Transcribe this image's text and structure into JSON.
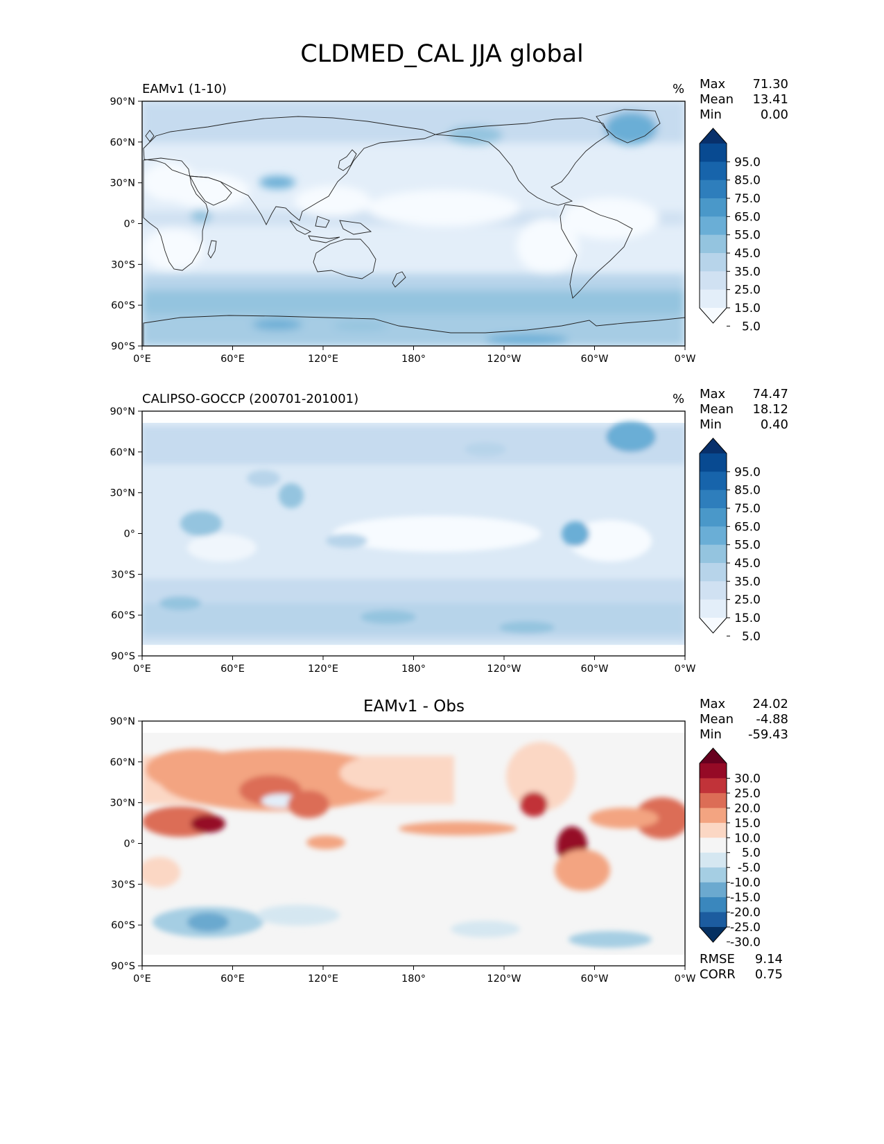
{
  "title": "CLDMED_CAL JJA global",
  "x_ticks": [
    "0°E",
    "60°E",
    "120°E",
    "180°",
    "120°W",
    "60°W",
    "0°W"
  ],
  "y_ticks": [
    "90°N",
    "60°N",
    "30°N",
    "0°",
    "30°S",
    "60°S",
    "90°S"
  ],
  "panels": [
    {
      "label": "EAMv1 (1-10)",
      "units": "%",
      "stats": [
        {
          "key": "Max",
          "value": "71.30"
        },
        {
          "key": "Mean",
          "value": "13.41"
        },
        {
          "key": "Min",
          "value": "0.00"
        }
      ]
    },
    {
      "label": "CALIPSO-GOCCP (200701-201001)",
      "units": "%",
      "stats": [
        {
          "key": "Max",
          "value": "74.47"
        },
        {
          "key": "Mean",
          "value": "18.12"
        },
        {
          "key": "Min",
          "value": "0.40"
        }
      ]
    },
    {
      "title": "EAMv1 - Obs",
      "stats": [
        {
          "key": "Max",
          "value": "24.02"
        },
        {
          "key": "Mean",
          "value": "-4.88"
        },
        {
          "key": "Min",
          "value": "-59.43"
        }
      ],
      "metrics": [
        {
          "key": "RMSE",
          "value": "9.14"
        },
        {
          "key": "CORR",
          "value": "0.75"
        }
      ]
    }
  ],
  "colorbar_seq": {
    "tick_labels": [
      "95.0",
      "85.0",
      "75.0",
      "65.0",
      "55.0",
      "45.0",
      "35.0",
      "25.0",
      "15.0",
      "5.0"
    ],
    "colors": [
      "#f7fbff",
      "#e3eef9",
      "#d0e1f2",
      "#b7d4ea",
      "#94c4df",
      "#6aaed6",
      "#4a98c9",
      "#2e7ebc",
      "#1764ab",
      "#084a91",
      "#08306b"
    ]
  },
  "colorbar_diff": {
    "tick_labels": [
      "30.0",
      "25.0",
      "20.0",
      "15.0",
      "10.0",
      "5.0",
      "-5.0",
      "-10.0",
      "-15.0",
      "-20.0",
      "-25.0",
      "-30.0"
    ],
    "colors": [
      "#053061",
      "#1c5c9f",
      "#3a87bd",
      "#6ba9cf",
      "#a5cee3",
      "#d5e7f1",
      "#f5f5f5",
      "#fbd7c4",
      "#f3a481",
      "#dc6d56",
      "#c13339",
      "#950a26",
      "#67001f"
    ]
  }
}
